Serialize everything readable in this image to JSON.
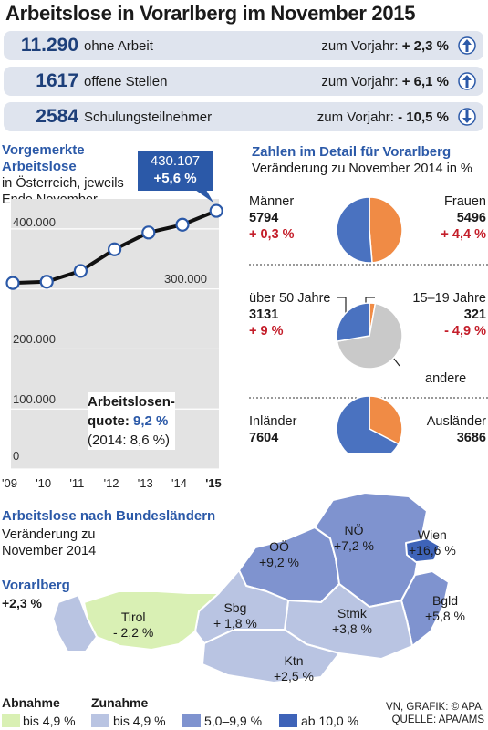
{
  "title": "Arbeitslose in Vorarlberg im November 2015",
  "stats": [
    {
      "value": "11.290",
      "label": "ohne Arbeit",
      "compare_label": "zum Vorjahr:",
      "change": "+ 2,3 %",
      "direction": "up"
    },
    {
      "value": "1617",
      "label": "offene Stellen",
      "compare_label": "zum Vorjahr:",
      "change": "+ 6,1 %",
      "direction": "up"
    },
    {
      "value": "2584",
      "label": "Schulungsteilnehmer",
      "compare_label": "zum Vorjahr:",
      "change": "- 10,5 %",
      "direction": "down"
    }
  ],
  "line_section": {
    "title_line1": "Vorgemerkte",
    "title_line2": "Arbeitslose",
    "sub_line1": "in Österreich, jeweils",
    "sub_line2": "Ende November",
    "callout_value": "430.107",
    "callout_change": "+5,6 %",
    "quote_line1": "Arbeitslosen-",
    "quote_label": "quote:",
    "quote_value": "9,2 %",
    "quote_prev": "(2014: 8,6 %)"
  },
  "detail_section": {
    "title": "Zahlen im Detail für Vorarlberg",
    "subtitle": "Veränderung zu November 2014 in %"
  },
  "pies": [
    {
      "left_label": "Männer",
      "left_value": "5794",
      "left_change": "+ 0,3 %",
      "right_label": "Frauen",
      "right_value": "5496",
      "right_change": "+ 4,4 %"
    },
    {
      "left_label": "über 50 Jahre",
      "left_value": "3131",
      "left_change": "+ 9 %",
      "right_label": "15–19 Jahre",
      "right_value": "321",
      "right_change": "- 4,9 %",
      "other_label": "andere"
    },
    {
      "left_label": "Inländer",
      "left_value": "7604",
      "right_label": "Ausländer",
      "right_value": "3686"
    }
  ],
  "map_section": {
    "title": "Arbeitslose nach Bundesländern",
    "sub_line1": "Veränderung zu",
    "sub_line2": "November 2014",
    "states": [
      {
        "name": "Vorarlberg",
        "change": "+2,3 %",
        "color": "#b9c4e2"
      },
      {
        "name": "Tirol",
        "change": "- 2,2 %",
        "color": "#d9f0b4"
      },
      {
        "name": "Sbg",
        "change": "+ 1,8 %",
        "color": "#b9c4e2"
      },
      {
        "name": "OÖ",
        "change": "+9,2 %",
        "color": "#7f93cf"
      },
      {
        "name": "NÖ",
        "change": "+7,2 %",
        "color": "#7f93cf"
      },
      {
        "name": "Wien",
        "change": "+16,6 %",
        "color": "#3e63b8"
      },
      {
        "name": "Bgld",
        "change": "+5,8 %",
        "color": "#7f93cf"
      },
      {
        "name": "Stmk",
        "change": "+3,8 %",
        "color": "#b9c4e2"
      },
      {
        "name": "Ktn",
        "change": "+2,5 %",
        "color": "#b9c4e2"
      }
    ]
  },
  "legend": {
    "decrease_title": "Abnahme",
    "increase_title": "Zunahme",
    "items": [
      {
        "label": "bis 4,9 %",
        "color": "#d9f0b4"
      },
      {
        "label": "bis 4,9 %",
        "color": "#b9c4e2"
      },
      {
        "label": "5,0–9,9 %",
        "color": "#7f93cf"
      },
      {
        "label": "ab 10,0 %",
        "color": "#3e63b8"
      }
    ]
  },
  "source_line1": "VN, GRAFIK: © APA,",
  "source_line2": "QUELLE: APA/AMS",
  "chart_data": [
    {
      "type": "line",
      "x": [
        "'09",
        "'10",
        "'11",
        "'12",
        "'13",
        "'14",
        "'15"
      ],
      "y": [
        310000,
        312000,
        330000,
        366000,
        394000,
        407000,
        430107
      ],
      "ylim": [
        0,
        450000
      ],
      "yticks": [
        "400.000",
        "300.000",
        "200.000",
        "100.000",
        "0"
      ],
      "grid": true
    },
    {
      "type": "pie",
      "labels": [
        "Männer",
        "Frauen"
      ],
      "values": [
        5794,
        5496
      ],
      "colors": [
        "#4a72c0",
        "#f08b45"
      ]
    },
    {
      "type": "pie",
      "labels": [
        "über 50 Jahre",
        "15–19 Jahre",
        "andere"
      ],
      "values": [
        3131,
        321,
        7838
      ],
      "colors": [
        "#4a72c0",
        "#f08b45",
        "#c9c9c9"
      ]
    },
    {
      "type": "pie",
      "labels": [
        "Inländer",
        "Ausländer"
      ],
      "values": [
        7604,
        3686
      ],
      "colors": [
        "#4a72c0",
        "#f08b45"
      ]
    }
  ]
}
